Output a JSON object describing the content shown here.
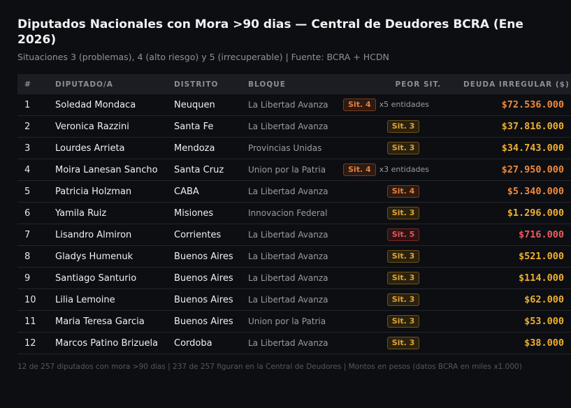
{
  "header": {
    "title": "Diputados Nacionales con Mora >90 dias — Central de Deudores BCRA (Ene 2026)",
    "subtitle": "Situaciones 3 (problemas), 4 (alto riesgo) y 5 (irrecuperable) | Fuente: BCRA + HCDN"
  },
  "table": {
    "columns": {
      "n": "#",
      "name": "DIPUTADO/A",
      "district": "DISTRITO",
      "bloc": "BLOQUE",
      "sit": "PEOR SIT.",
      "debt": "DEUDA IRREGULAR ($)"
    },
    "rows": [
      {
        "n": "1",
        "name": "Soledad Mondaca",
        "district": "Neuquen",
        "bloc": "La Libertad Avanza",
        "sit": "Sit. 4",
        "level": 4,
        "entities": "x5 entidades",
        "debt": "$72.536.000"
      },
      {
        "n": "2",
        "name": "Veronica Razzini",
        "district": "Santa Fe",
        "bloc": "La Libertad Avanza",
        "sit": "Sit. 3",
        "level": 3,
        "entities": "",
        "debt": "$37.816.000"
      },
      {
        "n": "3",
        "name": "Lourdes Arrieta",
        "district": "Mendoza",
        "bloc": "Provincias Unidas",
        "sit": "Sit. 3",
        "level": 3,
        "entities": "",
        "debt": "$34.743.000"
      },
      {
        "n": "4",
        "name": "Moira Lanesan Sancho",
        "district": "Santa Cruz",
        "bloc": "Union por la Patria",
        "sit": "Sit. 4",
        "level": 4,
        "entities": "x3 entidades",
        "debt": "$27.950.000"
      },
      {
        "n": "5",
        "name": "Patricia Holzman",
        "district": "CABA",
        "bloc": "La Libertad Avanza",
        "sit": "Sit. 4",
        "level": 4,
        "entities": "",
        "debt": "$5.340.000"
      },
      {
        "n": "6",
        "name": "Yamila Ruiz",
        "district": "Misiones",
        "bloc": "Innovacion Federal",
        "sit": "Sit. 3",
        "level": 3,
        "entities": "",
        "debt": "$1.296.000"
      },
      {
        "n": "7",
        "name": "Lisandro Almiron",
        "district": "Corrientes",
        "bloc": "La Libertad Avanza",
        "sit": "Sit. 5",
        "level": 5,
        "entities": "",
        "debt": "$716.000"
      },
      {
        "n": "8",
        "name": "Gladys Humenuk",
        "district": "Buenos Aires",
        "bloc": "La Libertad Avanza",
        "sit": "Sit. 3",
        "level": 3,
        "entities": "",
        "debt": "$521.000"
      },
      {
        "n": "9",
        "name": "Santiago Santurio",
        "district": "Buenos Aires",
        "bloc": "La Libertad Avanza",
        "sit": "Sit. 3",
        "level": 3,
        "entities": "",
        "debt": "$114.000"
      },
      {
        "n": "10",
        "name": "Lilia Lemoine",
        "district": "Buenos Aires",
        "bloc": "La Libertad Avanza",
        "sit": "Sit. 3",
        "level": 3,
        "entities": "",
        "debt": "$62.000"
      },
      {
        "n": "11",
        "name": "Maria Teresa Garcia",
        "district": "Buenos Aires",
        "bloc": "Union por la Patria",
        "sit": "Sit. 3",
        "level": 3,
        "entities": "",
        "debt": "$53.000"
      },
      {
        "n": "12",
        "name": "Marcos Patino Brizuela",
        "district": "Cordoba",
        "bloc": "La Libertad Avanza",
        "sit": "Sit. 3",
        "level": 3,
        "entities": "",
        "debt": "$38.000"
      }
    ]
  },
  "footer": "12 de 257 diputados con mora >90 dias | 237 de 257 figuran en la Central de Deudores | Montos en pesos (datos BCRA en miles x1.000)",
  "colors": {
    "background": "#0d0e12",
    "sit3": "#f0b030",
    "sit4": "#f08a3c",
    "sit5": "#ee5c5c"
  }
}
